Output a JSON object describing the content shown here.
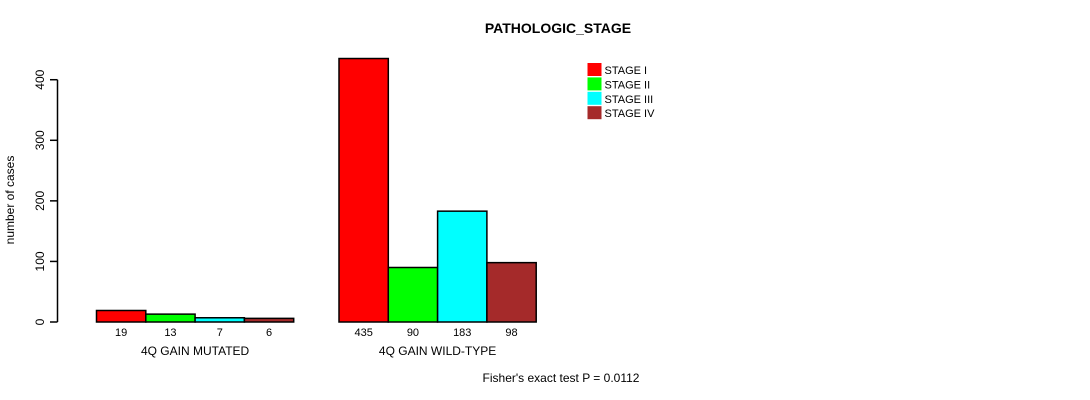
{
  "chart_data": {
    "type": "bar",
    "title": "PATHOLOGIC_STAGE",
    "ylabel": "number of cases",
    "xlabel": "",
    "ylim": [
      0,
      440
    ],
    "yticks": [
      0,
      100,
      200,
      300,
      400
    ],
    "grid": false,
    "legend_position": "top-right",
    "bar_value_labels_shown": true,
    "categories": [
      "4Q GAIN MUTATED",
      "4Q GAIN WILD-TYPE"
    ],
    "series": [
      {
        "name": "STAGE I",
        "color": "#ff0000",
        "values": [
          19,
          435
        ]
      },
      {
        "name": "STAGE II",
        "color": "#00ff00",
        "values": [
          13,
          90
        ]
      },
      {
        "name": "STAGE III",
        "color": "#00ffff",
        "values": [
          7,
          183
        ]
      },
      {
        "name": "STAGE IV",
        "color": "#a52a2a",
        "values": [
          6,
          98
        ]
      }
    ],
    "annotation": "Fisher's exact test P = 0.0112"
  },
  "colors": {
    "bar_border": "#000000",
    "axis": "#000000",
    "background": "#ffffff"
  }
}
